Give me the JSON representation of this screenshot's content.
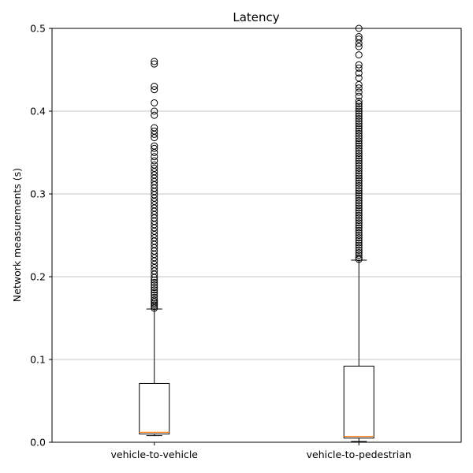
{
  "chart_data": {
    "type": "box",
    "title": "Latency",
    "xlabel": "",
    "ylabel": "Network measurements (s)",
    "ylim": [
      0,
      0.5
    ],
    "yticks": [
      0.0,
      0.1,
      0.2,
      0.3,
      0.4,
      0.5
    ],
    "ytick_labels": [
      "0.0",
      "0.1",
      "0.2",
      "0.3",
      "0.4",
      "0.5"
    ],
    "grid": "y",
    "categories": [
      "vehicle-to-vehicle",
      "vehicle-to-pedestrian"
    ],
    "boxes": [
      {
        "name": "vehicle-to-vehicle",
        "whisker_low": 0.008,
        "q1": 0.01,
        "median": 0.012,
        "q3": 0.071,
        "whisker_high": 0.161,
        "outliers": [
          0.162,
          0.164,
          0.166,
          0.168,
          0.17,
          0.172,
          0.175,
          0.178,
          0.181,
          0.184,
          0.187,
          0.19,
          0.193,
          0.196,
          0.199,
          0.203,
          0.207,
          0.211,
          0.215,
          0.219,
          0.223,
          0.227,
          0.231,
          0.235,
          0.239,
          0.243,
          0.247,
          0.251,
          0.255,
          0.259,
          0.263,
          0.267,
          0.271,
          0.275,
          0.279,
          0.283,
          0.287,
          0.291,
          0.295,
          0.299,
          0.303,
          0.307,
          0.311,
          0.315,
          0.319,
          0.323,
          0.327,
          0.331,
          0.335,
          0.34,
          0.345,
          0.35,
          0.355,
          0.358,
          0.368,
          0.372,
          0.376,
          0.38,
          0.395,
          0.4,
          0.41,
          0.426,
          0.43,
          0.457,
          0.46
        ]
      },
      {
        "name": "vehicle-to-pedestrian",
        "whisker_low": 0.001,
        "q1": 0.005,
        "median": 0.007,
        "q3": 0.092,
        "whisker_high": 0.22,
        "outliers": [
          0.221,
          0.223,
          0.226,
          0.229,
          0.232,
          0.235,
          0.238,
          0.241,
          0.244,
          0.247,
          0.25,
          0.253,
          0.256,
          0.259,
          0.262,
          0.265,
          0.268,
          0.271,
          0.274,
          0.277,
          0.28,
          0.283,
          0.286,
          0.289,
          0.292,
          0.295,
          0.298,
          0.301,
          0.304,
          0.307,
          0.31,
          0.313,
          0.316,
          0.319,
          0.322,
          0.325,
          0.328,
          0.331,
          0.334,
          0.337,
          0.34,
          0.343,
          0.346,
          0.349,
          0.352,
          0.355,
          0.358,
          0.361,
          0.364,
          0.367,
          0.37,
          0.373,
          0.376,
          0.379,
          0.382,
          0.385,
          0.388,
          0.391,
          0.394,
          0.397,
          0.4,
          0.403,
          0.406,
          0.409,
          0.412,
          0.418,
          0.423,
          0.428,
          0.432,
          0.44,
          0.446,
          0.452,
          0.456,
          0.468,
          0.478,
          0.482,
          0.487,
          0.49,
          0.5
        ]
      }
    ],
    "colors": {
      "box": "#000000",
      "median": "#ff7f0e",
      "grid": "#b0b0b0",
      "outlier": "#000000"
    }
  }
}
